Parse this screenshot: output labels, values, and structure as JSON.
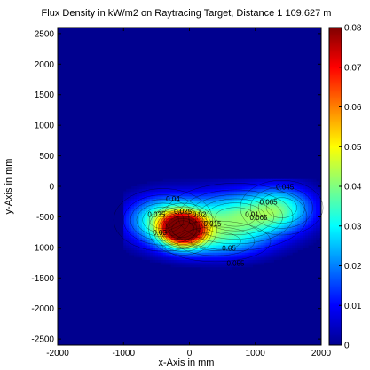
{
  "chart_data": {
    "type": "heatmap",
    "title": "Flux Density in kW/m2 on Raytracing Target, Distance 1 109.627 m",
    "xlabel": "x-Axis in mm",
    "ylabel": "y-Axis in mm",
    "xlim": [
      -2000,
      2000
    ],
    "ylim": [
      -2600,
      2600
    ],
    "xticks": [
      "-2000",
      "-1000",
      "0",
      "1000",
      "2000"
    ],
    "yticks": [
      "2500",
      "2000",
      "1500",
      "1000",
      "500",
      "0",
      "-500",
      "-1000",
      "-1500",
      "-2000",
      "-2500"
    ],
    "colorbar": {
      "min": 0,
      "max": 0.08,
      "ticks": [
        "0",
        "0.01",
        "0.02",
        "0.03",
        "0.04",
        "0.05",
        "0.06",
        "0.07",
        "0.08"
      ],
      "colormap": "jet"
    },
    "background_value": 0.0,
    "hotspots": [
      {
        "x": -100,
        "y": -700,
        "peak": 0.08,
        "sx": 220,
        "sy": 180
      },
      {
        "x": -400,
        "y": -550,
        "peak": 0.035,
        "sx": 380,
        "sy": 260
      },
      {
        "x": 700,
        "y": -500,
        "peak": 0.035,
        "sx": 550,
        "sy": 280
      },
      {
        "x": 1400,
        "y": -350,
        "peak": 0.025,
        "sx": 350,
        "sy": 250
      },
      {
        "x": 400,
        "y": -900,
        "peak": 0.02,
        "sx": 500,
        "sy": 200
      }
    ],
    "contour_labels": [
      "0.04",
      "0.035",
      "0.03",
      "0.025",
      "0.02",
      "0.015",
      "0.01",
      "0.005",
      "0.045",
      "0.05",
      "0.055",
      "0.065"
    ]
  }
}
